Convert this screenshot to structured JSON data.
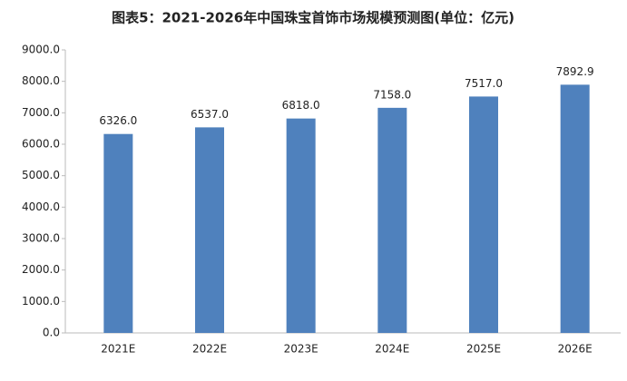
{
  "chart_data": {
    "type": "bar",
    "title": "图表5：2021-2026年中国珠宝首饰市场规模预测图(单位：亿元)",
    "categories": [
      "2021E",
      "2022E",
      "2023E",
      "2024E",
      "2025E",
      "2026E"
    ],
    "values": [
      6326,
      6537,
      6818,
      7158,
      7517,
      7892.9
    ],
    "value_labels": [
      "6326.0",
      "6537.0",
      "6818.0",
      "7158.0",
      "7517.0",
      "7892.9"
    ],
    "color": "#4f81bd",
    "ylim": [
      0,
      9000
    ],
    "yticks": [
      {
        "value": 0,
        "label": "0.0"
      },
      {
        "value": 1000,
        "label": "1000.0"
      },
      {
        "value": 2000,
        "label": "2000.0"
      },
      {
        "value": 3000,
        "label": "3000.0"
      },
      {
        "value": 4000,
        "label": "4000.0"
      },
      {
        "value": 5000,
        "label": "5000.0"
      },
      {
        "value": 6000,
        "label": "6000.0"
      },
      {
        "value": 7000,
        "label": "7000.0"
      },
      {
        "value": 8000,
        "label": "8000.0"
      },
      {
        "value": 9000,
        "label": "9000.0"
      }
    ],
    "grid": false
  }
}
